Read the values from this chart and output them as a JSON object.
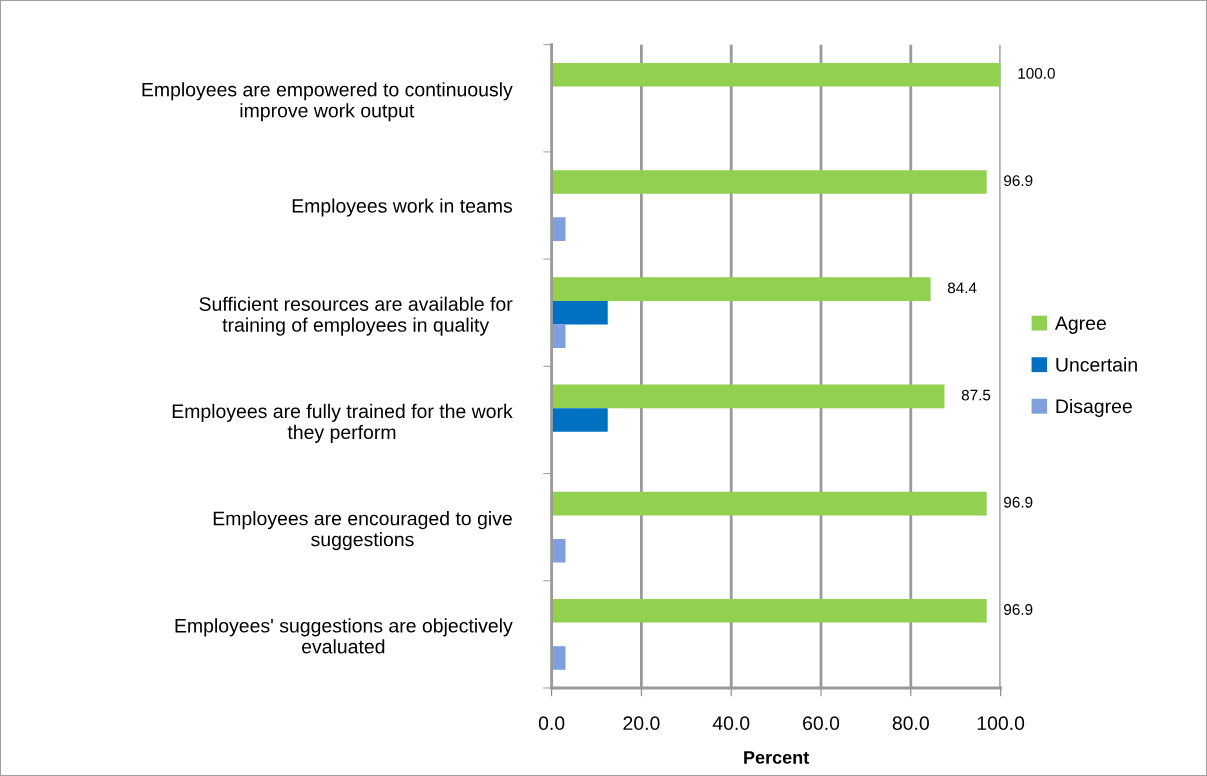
{
  "chart_data": {
    "type": "bar",
    "orientation": "horizontal",
    "categories": [
      "Employees are empowered to continuously\nimprove work output",
      "Employees work in teams",
      "Sufficient resources are available for\ntraining of employees in quality",
      "Employees are fully trained for the work\nthey perform",
      "Employees are encouraged to give\nsuggestions",
      "Employees' suggestions are objectively\nevaluated"
    ],
    "series": [
      {
        "name": "Agree",
        "color": "#92d050",
        "values": [
          100.0,
          96.9,
          84.4,
          87.5,
          96.9,
          96.9
        ],
        "value_labels": [
          "100.0",
          "96.9",
          "84.4",
          "87.5",
          "96.9",
          "96.9"
        ]
      },
      {
        "name": "Uncertain",
        "color": "#0070c0",
        "values": [
          null,
          null,
          12.5,
          12.5,
          null,
          null
        ]
      },
      {
        "name": "Disagree",
        "color": "#7f9fdd",
        "values": [
          null,
          3.1,
          3.1,
          null,
          3.1,
          3.1
        ]
      }
    ],
    "xlabel": "Percent",
    "xlim": [
      0,
      100
    ],
    "xticks": [
      {
        "value": 0,
        "label": "0.0"
      },
      {
        "value": 20,
        "label": "20.0"
      },
      {
        "value": 40,
        "label": "40.0"
      },
      {
        "value": 60,
        "label": "60.0"
      },
      {
        "value": 80,
        "label": "80.0"
      },
      {
        "value": 100,
        "label": "100.0"
      }
    ],
    "grid": "x",
    "legend": "right"
  }
}
